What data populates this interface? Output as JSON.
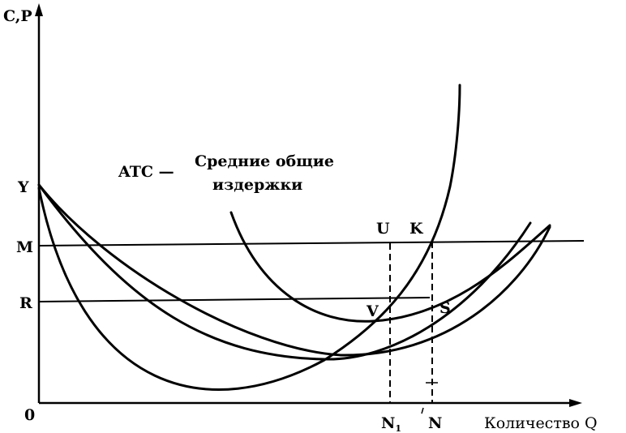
{
  "axes": {
    "y_label": "C,P",
    "x_label": "Количество Q",
    "origin": "0"
  },
  "y_marks": [
    "Y",
    "M",
    "R"
  ],
  "x_marks": [
    {
      "main": "N",
      "sub": "1"
    },
    {
      "main": "N",
      "sub": ""
    }
  ],
  "points": [
    "U",
    "K",
    "V",
    "S"
  ],
  "caption": {
    "abbr": "ATC —",
    "line1": "Средние общие",
    "line2": "издержки"
  }
}
